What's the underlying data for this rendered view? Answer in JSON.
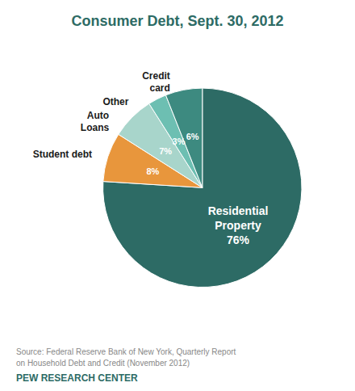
{
  "chart_data": {
    "type": "pie",
    "title": "Consumer Debt, Sept. 30, 2012",
    "categories": [
      "Residential\nProperty",
      "Student debt",
      "Auto\nLoans",
      "Other",
      "Credit\ncard"
    ],
    "values": [
      76,
      8,
      7,
      3,
      6
    ],
    "value_labels": [
      "76%",
      "8%",
      "7%",
      "3%",
      "6%"
    ],
    "colors": [
      "#2d6b65",
      "#e8963c",
      "#a8d5cb",
      "#6dbfb2",
      "#3d8a80"
    ],
    "data_labels": true,
    "annotations": [
      "Source: Federal Reserve Bank of New York, Quarterly Report",
      "on Household Debt and Credit (November 2012)",
      "PEW RESEARCH CENTER"
    ]
  }
}
